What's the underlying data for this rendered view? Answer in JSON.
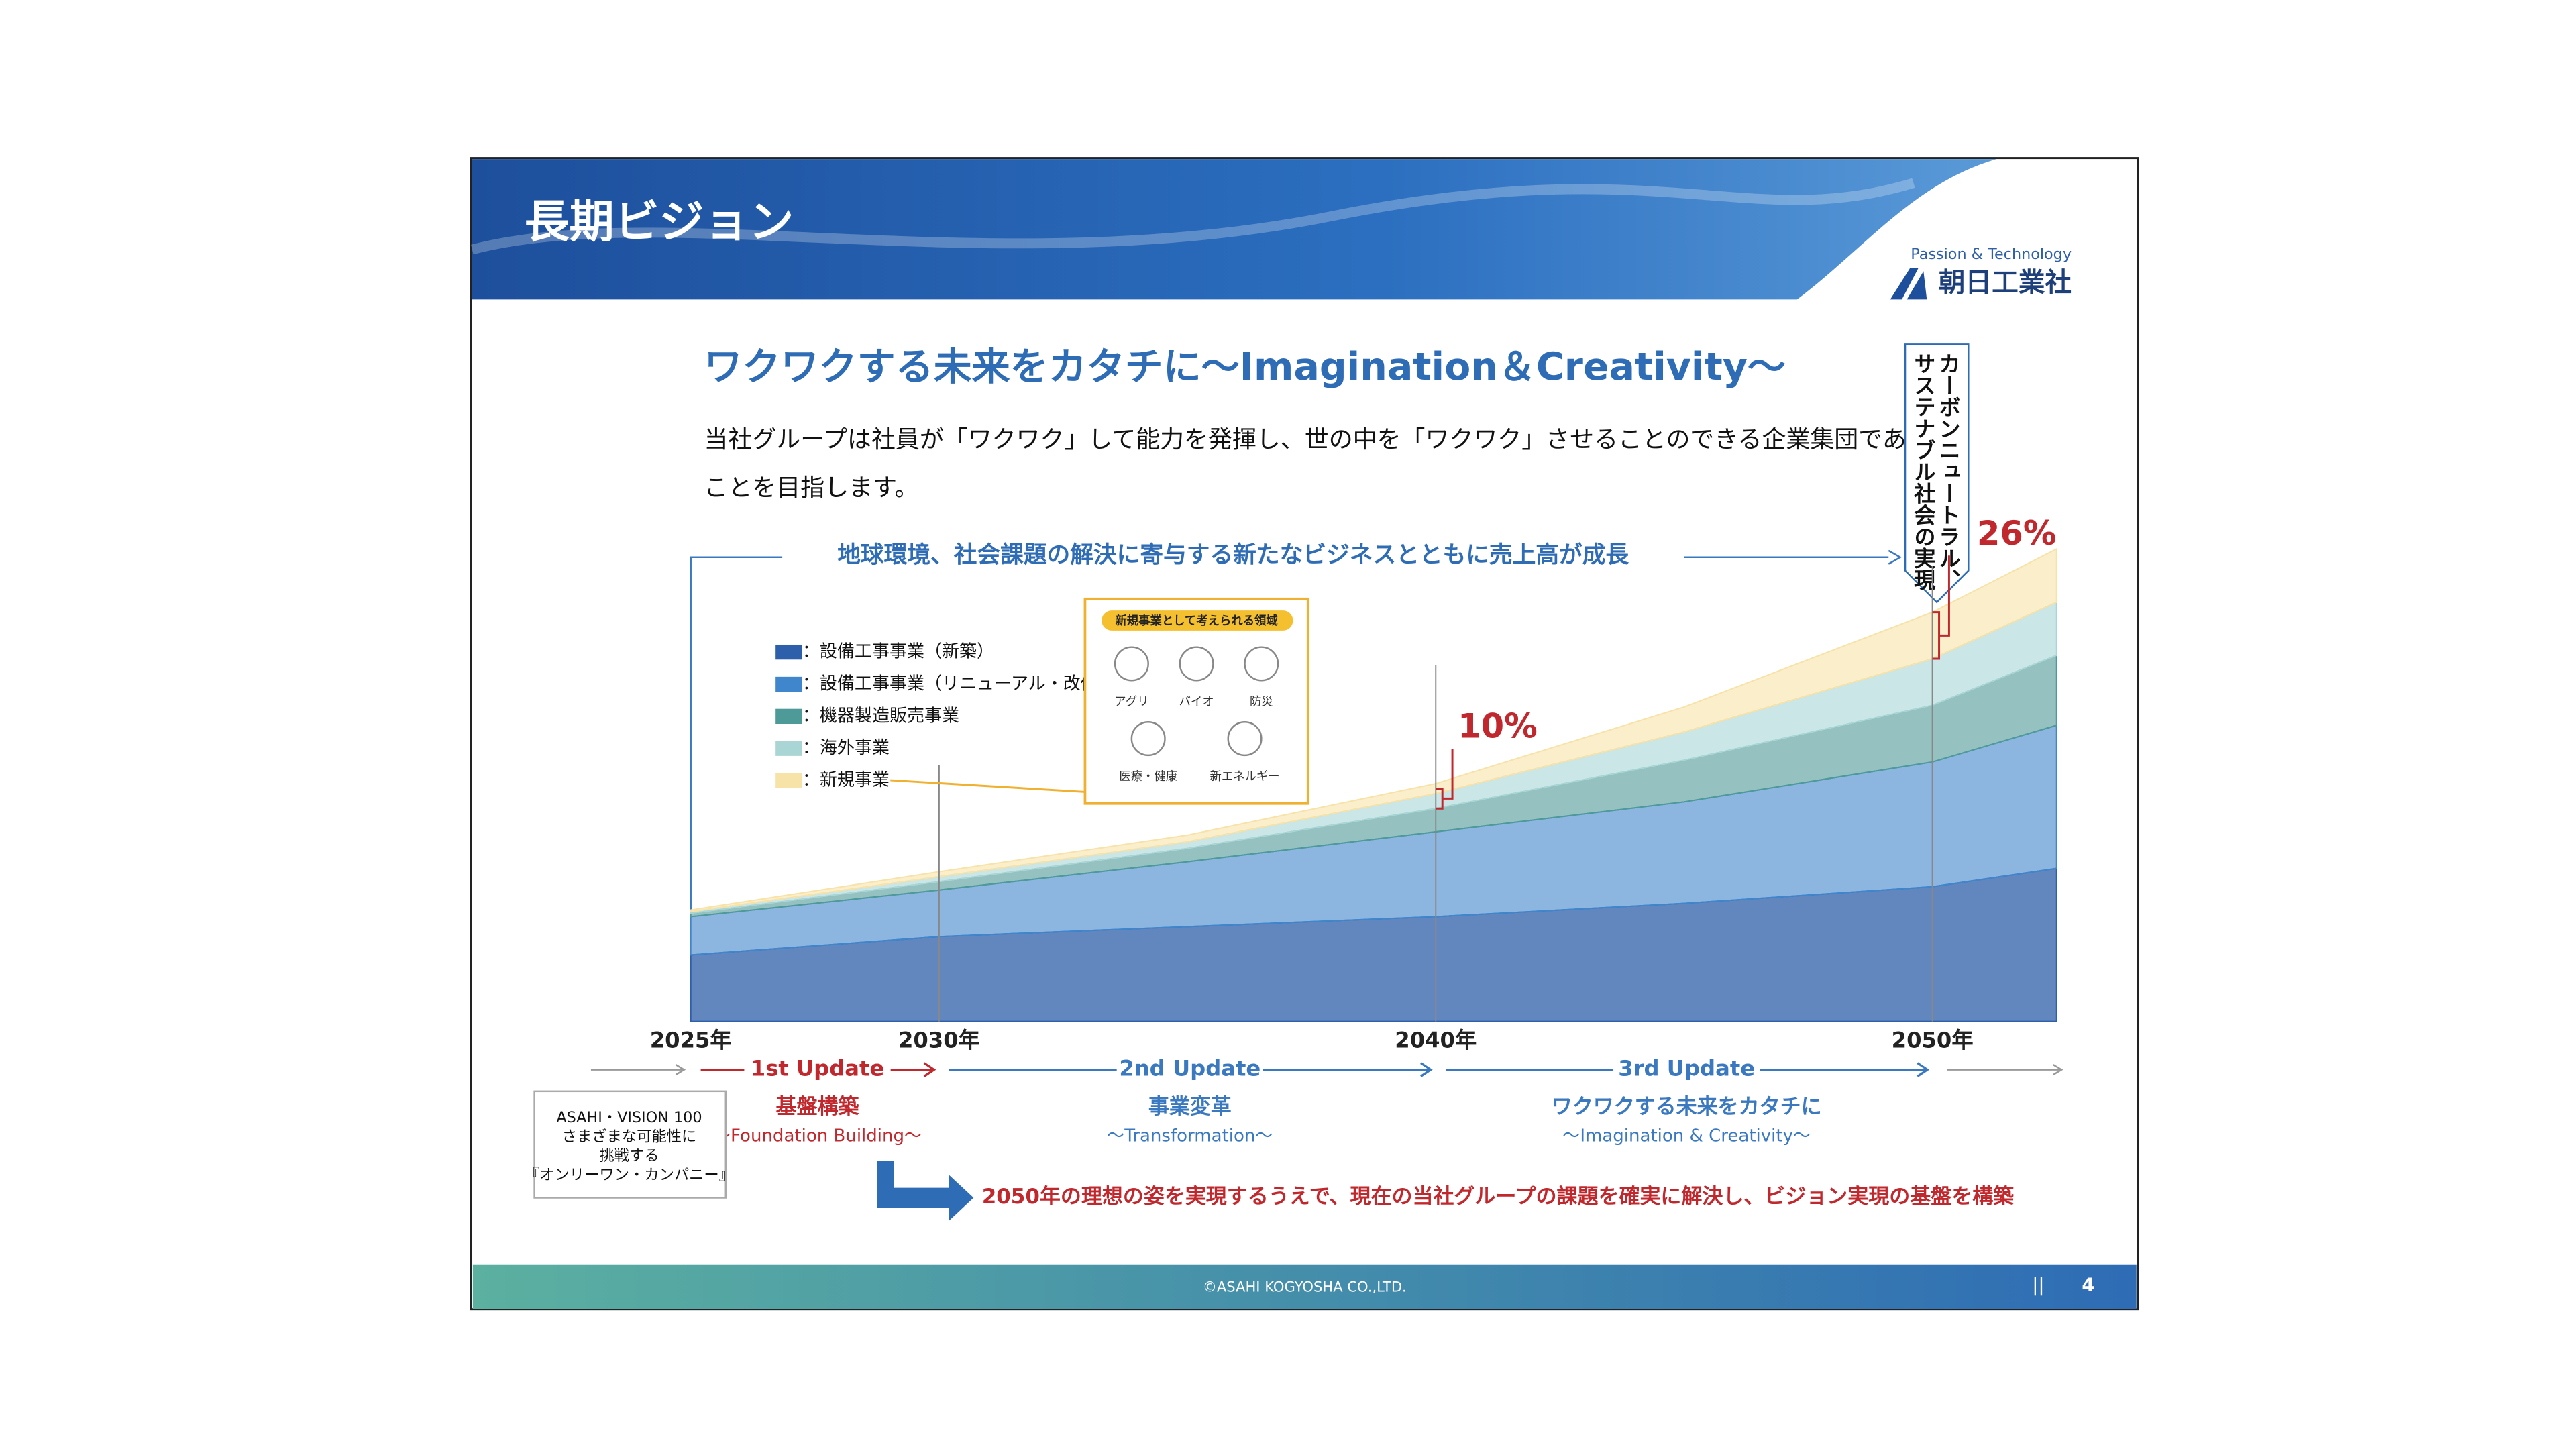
{
  "header": {
    "title": "長期ビジョン",
    "tagline": "Passion & Technology",
    "company": "朝日工業社"
  },
  "headline": "ワクワクする未来をカタチに～Imagination＆Creativity～",
  "description": [
    "当社グループは社員が「ワクワク」して能力を発揮し、世の中を「ワクワク」させることのできる企業集団である",
    "ことを目指します。"
  ],
  "banner": "地球環境、社会課題の解決に寄与する新たなビジネスとともに売上高が成長",
  "goal": [
    "カーボンニュートラル、",
    "サステナブル社会の実現"
  ],
  "new_business": {
    "title": "新規事業として考えられる領域",
    "items": [
      "アグリ",
      "バイオ",
      "防災",
      "医療・健康",
      "新エネルギー"
    ]
  },
  "chart_data": {
    "type": "area",
    "stacked": true,
    "x": [
      2025,
      2030,
      2035,
      2040,
      2045,
      2050,
      2052.5
    ],
    "xlim": [
      2025,
      2052.5
    ],
    "xticks": [
      {
        "value": 2025,
        "label": "2025年"
      },
      {
        "value": 2030,
        "label": "2030年"
      },
      {
        "value": 2040,
        "label": "2040年"
      },
      {
        "value": 2050,
        "label": "2050年"
      }
    ],
    "ylim": [
      0,
      300
    ],
    "series": [
      {
        "name": "：設備工事事業（新築）",
        "color": "#2e5faa",
        "values": [
          40,
          51,
          57,
          63,
          71,
          81,
          92
        ]
      },
      {
        "name": "：設備工事事業（リニューアル・改修等）",
        "color": "#3f86cc",
        "values": [
          23,
          28,
          39,
          51,
          61,
          75,
          86
        ]
      },
      {
        "name": "：機器製造販売事業",
        "color": "#4e9a98",
        "values": [
          2,
          5,
          8,
          14,
          25,
          34,
          42
        ]
      },
      {
        "name": "：海外事業",
        "color": "#a9d5d5",
        "values": [
          1,
          3,
          4,
          9,
          17,
          28,
          32
        ]
      },
      {
        "name": "：新規事業",
        "color": "#f7e2a8",
        "values": [
          1,
          3,
          4,
          6,
          15,
          28,
          32
        ]
      }
    ],
    "annotations": [
      "10%",
      "26%"
    ]
  },
  "timeline": {
    "vision": [
      "ASAHI・VISION 100",
      "さまざまな可能性に",
      "挑戦する",
      "『オンリーワン・カンパニー』"
    ],
    "phases": [
      {
        "name": "1st Update",
        "title": "基盤構築",
        "subtitle": "～Foundation Building～"
      },
      {
        "name": "2nd Update",
        "title": "事業変革",
        "subtitle": "～Transformation～"
      },
      {
        "name": "3rd Update",
        "title": "ワクワクする未来をカタチに",
        "subtitle": "～Imagination & Creativity～"
      }
    ]
  },
  "message": "2050年の理想の姿を実現するうえで、現在の当社グループの課題を確実に解決し、ビジョン実現の基盤を構築",
  "footer": {
    "copyright": "©ASAHI KOGYOSHA CO.,LTD.",
    "separator": "||",
    "page": 4
  }
}
